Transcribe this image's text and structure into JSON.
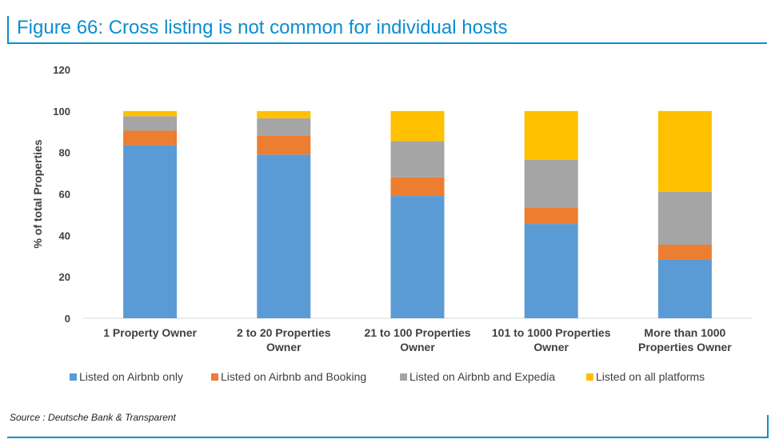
{
  "page": {
    "title": "Figure 66: Cross listing is not common for individual hosts",
    "source": "Source : Deutsche Bank & Transparent"
  },
  "colors": {
    "accent": "#0b8ecf",
    "series": [
      "#5b9bd5",
      "#ed7d31",
      "#a5a5a5",
      "#ffc000"
    ]
  },
  "chart_data": {
    "type": "bar",
    "stacked": true,
    "categories": [
      [
        "1 Property Owner"
      ],
      [
        "2 to 20 Properties",
        "Owner"
      ],
      [
        "21 to 100 Properties",
        "Owner"
      ],
      [
        "101 to 1000 Properties",
        "Owner"
      ],
      [
        "More than 1000",
        "Properties Owner"
      ]
    ],
    "series": [
      {
        "name": "Listed on Airbnb only",
        "values": [
          83.5,
          79,
          59,
          45.5,
          28.5
        ]
      },
      {
        "name": "Listed on Airbnb and Booking",
        "values": [
          7,
          9,
          9,
          8,
          7
        ]
      },
      {
        "name": "Listed on Airbnb and Expedia",
        "values": [
          7,
          8.5,
          17.5,
          23,
          25.5
        ]
      },
      {
        "name": "Listed on all platforms",
        "values": [
          2.5,
          3.5,
          14.5,
          23.5,
          39
        ]
      }
    ],
    "ylabel": "% of total Properties",
    "xlabel": "",
    "ylim": [
      0,
      120
    ],
    "yticks": [
      0,
      20,
      40,
      60,
      80,
      100,
      120
    ],
    "grid": false,
    "legend": "bottom"
  }
}
